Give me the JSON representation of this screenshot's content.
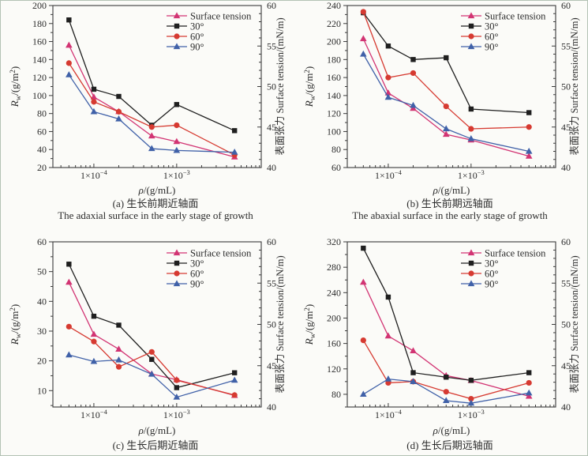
{
  "figure_title": "",
  "colors": {
    "surface_tension": "#d23473",
    "deg30": "#1f1f1f",
    "deg60": "#d63a31",
    "deg90": "#4061a8",
    "axis": "#3a3a3a",
    "text": "#2b2b2b",
    "background": "#fbfbf8",
    "border": "#b3c2b4"
  },
  "legend": {
    "position": "top-right-inside",
    "items": [
      {
        "label": "Surface tension",
        "series": "surface_tension",
        "marker": "triangle"
      },
      {
        "label": "30°",
        "series": "deg30",
        "marker": "square"
      },
      {
        "label": "60°",
        "series": "deg60",
        "marker": "circle"
      },
      {
        "label": "90°",
        "series": "deg90",
        "marker": "triangle"
      }
    ]
  },
  "shared": {
    "x_values": [
      5e-05,
      0.0001,
      0.0002,
      0.0005,
      0.001,
      0.005
    ],
    "x_axis": {
      "scale": "log",
      "min": 3.2e-05,
      "max": 0.0105,
      "major_ticks": [
        {
          "value": 0.0001,
          "base": "1×10",
          "exp": "−4"
        },
        {
          "value": 0.001,
          "base": "1×10",
          "exp": "−3"
        }
      ]
    },
    "x_label": {
      "var": "ρ",
      "rest": "/(g/mL)"
    },
    "left_label": {
      "var": "R",
      "sub": "w",
      "rest": "/(g/m",
      "sup": "2",
      "close": ")"
    },
    "right_label": "表面张力 Surface tension/(mN/m)",
    "right_axis": {
      "min": 40,
      "max": 60,
      "major_step": 5,
      "minor_step": 1
    }
  },
  "chart_data": [
    {
      "type": "line",
      "panel": "a",
      "caption_cn": "(a) 生长前期近轴面",
      "caption_en": "The adaxial surface in the early stage of growth",
      "left_axis": {
        "min": 20,
        "max": 200,
        "major_step": 20,
        "minor_step": 10,
        "major_start": 20
      },
      "series": {
        "surface_tension": [
          55.1,
          48.7,
          46.9,
          43.9,
          43.2,
          41.3
        ],
        "deg30": [
          184,
          107,
          99,
          67,
          90,
          61
        ],
        "deg60": [
          136,
          93,
          82,
          65,
          67,
          34
        ],
        "deg90": [
          123,
          82,
          74,
          41,
          39,
          37
        ]
      }
    },
    {
      "type": "line",
      "panel": "b",
      "caption_cn": "(b) 生长前期远轴面",
      "caption_en": "The abaxial surface in the early stage of growth",
      "left_axis": {
        "min": 60,
        "max": 240,
        "major_step": 20,
        "minor_step": 10,
        "major_start": 60
      },
      "series": {
        "surface_tension": [
          55.9,
          49.2,
          47.3,
          44.1,
          43.4,
          41.4
        ],
        "deg30": [
          232,
          195,
          180,
          182,
          125,
          121
        ],
        "deg60": [
          233,
          160,
          165,
          128,
          103,
          105
        ],
        "deg90": [
          186,
          138,
          129,
          103,
          92,
          78
        ]
      }
    },
    {
      "type": "line",
      "panel": "c",
      "caption_cn": "(c) 生长后期近轴面",
      "caption_en": "",
      "left_axis": {
        "min": 4.5,
        "max": 60,
        "major_step": 10,
        "minor_step": 5,
        "major_start": 10
      },
      "series": {
        "surface_tension": [
          55.1,
          48.8,
          47.0,
          44.0,
          43.3,
          41.4
        ],
        "deg30": [
          52.5,
          35,
          32,
          20.5,
          11,
          16
        ],
        "deg60": [
          31.5,
          26.5,
          18,
          23,
          13.5,
          8.5
        ],
        "deg90": [
          22,
          19.8,
          20.3,
          15.5,
          7.8,
          13.5
        ]
      }
    },
    {
      "type": "line",
      "panel": "d",
      "caption_cn": "(d) 生长后期远轴面",
      "caption_en": "",
      "left_axis": {
        "min": 60,
        "max": 320,
        "major_step": 40,
        "minor_step": 20,
        "major_start": 80
      },
      "series": {
        "surface_tension": [
          55.1,
          48.6,
          46.8,
          43.8,
          43.2,
          41.3
        ],
        "deg30": [
          310,
          233,
          114,
          107,
          102,
          114
        ],
        "deg60": [
          165,
          98,
          100,
          84,
          73,
          98
        ],
        "deg90": [
          80,
          104,
          100,
          70,
          66,
          82
        ]
      }
    }
  ]
}
